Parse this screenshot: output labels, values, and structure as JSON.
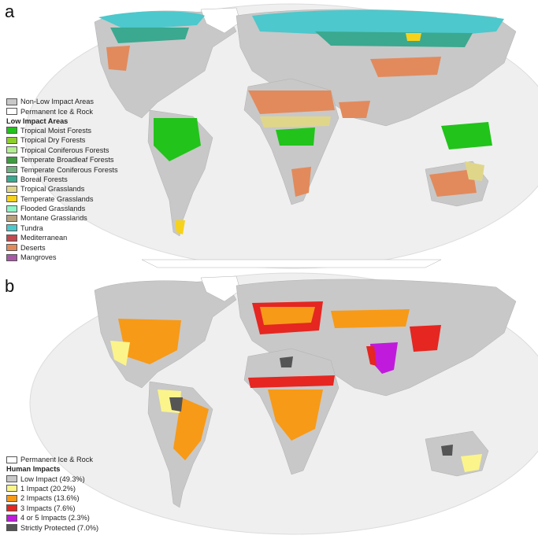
{
  "panel_a": {
    "letter": "a",
    "legend": {
      "top_items": [
        {
          "label": "Non-Low Impact Areas",
          "color": "#c8c8c8"
        },
        {
          "label": "Permanent Ice & Rock",
          "color": "#ffffff"
        }
      ],
      "heading": "Low Impact Areas",
      "items": [
        {
          "label": "Tropical Moist Forests",
          "color": "#22c31b"
        },
        {
          "label": "Tropical Dry Forests",
          "color": "#8ccf2a"
        },
        {
          "label": "Tropical Coniferous Forests",
          "color": "#b4ee92"
        },
        {
          "label": "Temperate Broadleaf Forests",
          "color": "#3f9c3f"
        },
        {
          "label": "Temperate Coniferous Forests",
          "color": "#6fb07f"
        },
        {
          "label": "Boreal Forests",
          "color": "#3aa98f"
        },
        {
          "label": "Tropical Grasslands",
          "color": "#e0d68a"
        },
        {
          "label": "Temperate Grasslands",
          "color": "#f7d21b"
        },
        {
          "label": "Flooded Grasslands",
          "color": "#8ef5c6"
        },
        {
          "label": "Montane Grasslands",
          "color": "#b7a07d"
        },
        {
          "label": "Tundra",
          "color": "#4dc8cc"
        },
        {
          "label": "Mediterranean",
          "color": "#c2494f"
        },
        {
          "label": "Deserts",
          "color": "#e28a5c"
        },
        {
          "label": "Mangroves",
          "color": "#a85aa7"
        }
      ]
    }
  },
  "panel_b": {
    "letter": "b",
    "legend": {
      "top_items": [
        {
          "label": "Permanent Ice & Rock",
          "color": "#ffffff"
        }
      ],
      "heading": "Human Impacts",
      "items": [
        {
          "label": "Low Impact (49.3%)",
          "color": "#c8c8c8"
        },
        {
          "label": "1 Impact (20.2%)",
          "color": "#fbf48a"
        },
        {
          "label": "2 Impacts (13.6%)",
          "color": "#f79a17"
        },
        {
          "label": "3 Impacts (7.6%)",
          "color": "#e52621"
        },
        {
          "label": "4 or 5 Impacts (2.3%)",
          "color": "#c01bdc"
        },
        {
          "label": "Strictly Protected (7.0%)",
          "color": "#555555"
        }
      ]
    }
  },
  "colors": {
    "ocean": "#efefef",
    "land_base": "#c8c8c8",
    "outline": "#aaaaaa"
  }
}
